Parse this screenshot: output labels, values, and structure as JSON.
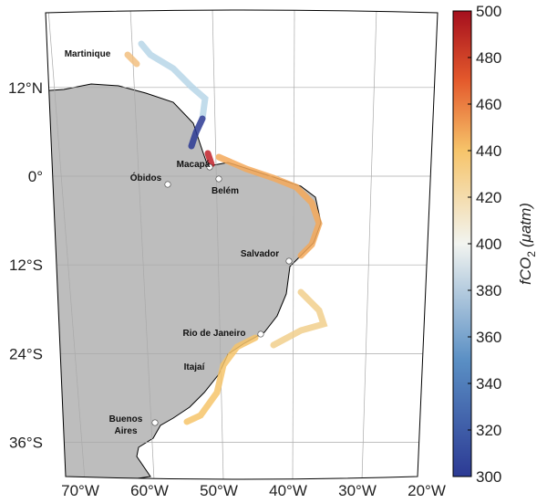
{
  "map": {
    "lat_ticks": [
      {
        "value": 12,
        "label": "12°N"
      },
      {
        "value": 0,
        "label": "0°"
      },
      {
        "value": -12,
        "label": "12°S"
      },
      {
        "value": -24,
        "label": "24°S"
      },
      {
        "value": -36,
        "label": "36°S"
      }
    ],
    "lon_ticks": [
      {
        "value": -70,
        "label": "70°W"
      },
      {
        "value": -60,
        "label": "60°W"
      },
      {
        "value": -50,
        "label": "50°W"
      },
      {
        "value": -40,
        "label": "40°W"
      },
      {
        "value": -30,
        "label": "30°W"
      },
      {
        "value": -20,
        "label": "20°W"
      }
    ],
    "places": [
      "Martinique",
      "Macapá",
      "Óbidos",
      "Belém",
      "Salvador",
      "Rio de Janeiro",
      "Itajaí",
      "Buenos Aires"
    ],
    "colorbar": {
      "lim": [
        300,
        500
      ],
      "ticks": [
        300,
        320,
        340,
        360,
        380,
        400,
        420,
        440,
        460,
        480,
        500
      ],
      "label": {
        "main": "fCO",
        "subscript": "2",
        "unit": "(μatm)"
      }
    }
  }
}
